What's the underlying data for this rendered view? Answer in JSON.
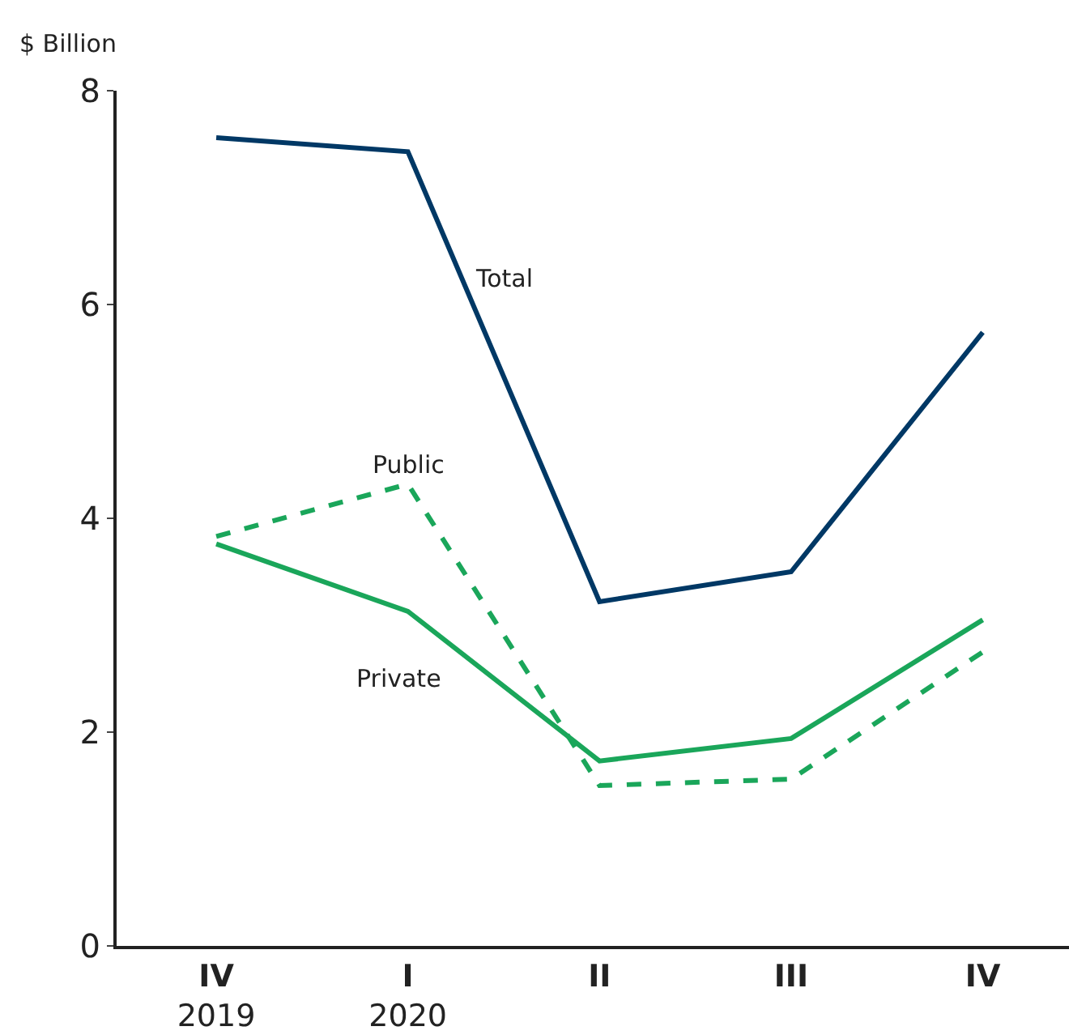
{
  "chart_data": {
    "type": "line",
    "ylabel": "$ Billion",
    "categories": [
      "IV\n2019",
      "I\n2020",
      "II",
      "III",
      "IV"
    ],
    "series": [
      {
        "name": "Total",
        "color": "#003865",
        "values": [
          7.56,
          7.43,
          3.22,
          3.5,
          5.74
        ],
        "line_style": "solid"
      },
      {
        "name": "Public",
        "color": "#1aa65a",
        "values": [
          3.83,
          4.32,
          1.5,
          1.56,
          2.75
        ],
        "line_style": "dashed"
      },
      {
        "name": "Private",
        "color": "#1aa65a",
        "values": [
          3.76,
          3.13,
          1.73,
          1.94,
          3.05
        ],
        "line_style": "solid"
      }
    ],
    "ylim": [
      0,
      8
    ],
    "yticks": [
      0,
      2,
      4,
      6,
      8
    ],
    "legend": false,
    "marker": "none"
  }
}
